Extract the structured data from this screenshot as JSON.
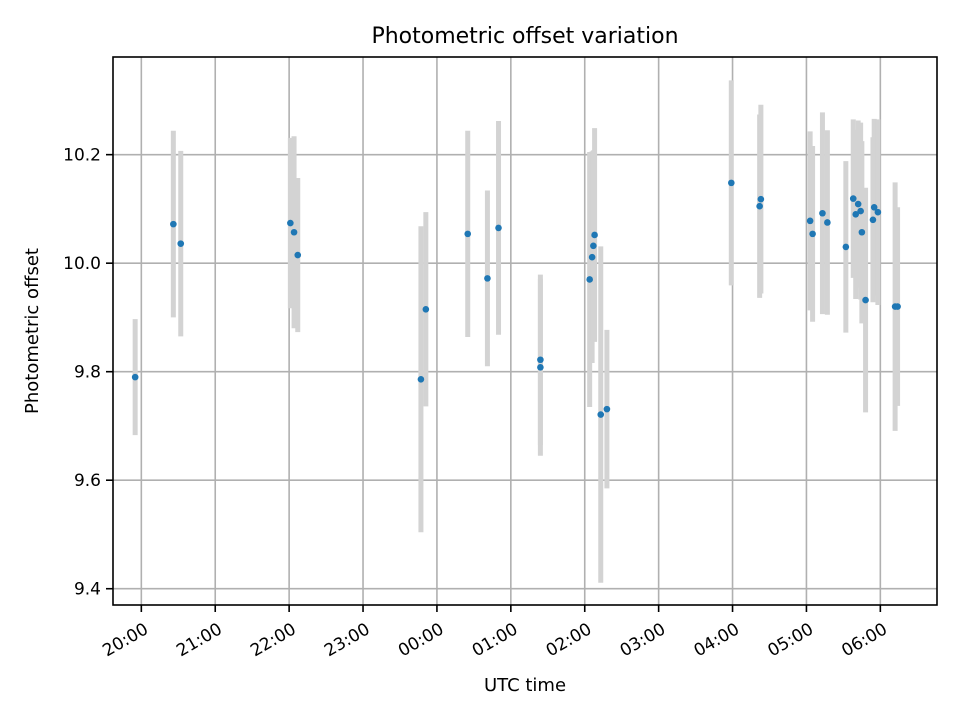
{
  "chart_data": {
    "type": "scatter",
    "title": "Photometric offset variation",
    "xlabel": "UTC time",
    "ylabel": "Photometric offset",
    "x_date": "2024-01-01",
    "xlim": [
      "2024-01-01T19:37",
      "2024-01-02T06:46"
    ],
    "ylim": [
      9.37,
      10.38
    ],
    "grid": true,
    "x_ticks": [
      {
        "t": "2024-01-01T20:00",
        "label": "20:00"
      },
      {
        "t": "2024-01-01T21:00",
        "label": "21:00"
      },
      {
        "t": "2024-01-01T22:00",
        "label": "22:00"
      },
      {
        "t": "2024-01-01T23:00",
        "label": "23:00"
      },
      {
        "t": "2024-01-02T00:00",
        "label": "00:00"
      },
      {
        "t": "2024-01-02T01:00",
        "label": "01:00"
      },
      {
        "t": "2024-01-02T02:00",
        "label": "02:00"
      },
      {
        "t": "2024-01-02T03:00",
        "label": "03:00"
      },
      {
        "t": "2024-01-02T04:00",
        "label": "04:00"
      },
      {
        "t": "2024-01-02T05:00",
        "label": "05:00"
      },
      {
        "t": "2024-01-02T06:00",
        "label": "06:00"
      }
    ],
    "y_ticks": [
      {
        "v": 9.4,
        "label": "9.4"
      },
      {
        "v": 9.6,
        "label": "9.6"
      },
      {
        "v": 9.8,
        "label": "9.8"
      },
      {
        "v": 10.0,
        "label": "10.0"
      },
      {
        "v": 10.2,
        "label": "10.2"
      }
    ],
    "point_color": "#1f77b4",
    "errorbar_color": "#d3d3d3",
    "series": [
      {
        "points": [
          {
            "t": "2024-01-01T19:55",
            "y": 9.79,
            "err": 0.107
          },
          {
            "t": "2024-01-01T20:26",
            "y": 10.072,
            "err": 0.172
          },
          {
            "t": "2024-01-01T20:32",
            "y": 10.036,
            "err": 0.171
          },
          {
            "t": "2024-01-01T22:01",
            "y": 10.074,
            "err": 0.157
          },
          {
            "t": "2024-01-01T22:04",
            "y": 10.057,
            "err": 0.177
          },
          {
            "t": "2024-01-01T22:07",
            "y": 10.015,
            "err": 0.142
          },
          {
            "t": "2024-01-01T23:47",
            "y": 9.786,
            "err": 0.282
          },
          {
            "t": "2024-01-01T23:51",
            "y": 9.915,
            "err": 0.179
          },
          {
            "t": "2024-01-02T00:25",
            "y": 10.054,
            "err": 0.19
          },
          {
            "t": "2024-01-02T00:41",
            "y": 9.972,
            "err": 0.162
          },
          {
            "t": "2024-01-02T00:50",
            "y": 10.065,
            "err": 0.197
          },
          {
            "t": "2024-01-02T01:24",
            "y": 9.822,
            "err": 0.157
          },
          {
            "t": "2024-01-02T01:24",
            "y": 9.808,
            "err": 0.163
          },
          {
            "t": "2024-01-02T02:04",
            "y": 9.97,
            "err": 0.235
          },
          {
            "t": "2024-01-02T02:06",
            "y": 10.011,
            "err": 0.195
          },
          {
            "t": "2024-01-02T02:07",
            "y": 10.032,
            "err": 0.176
          },
          {
            "t": "2024-01-02T02:08",
            "y": 10.052,
            "err": 0.197
          },
          {
            "t": "2024-01-02T02:13",
            "y": 9.721,
            "err": 0.31
          },
          {
            "t": "2024-01-02T02:18",
            "y": 9.731,
            "err": 0.146
          },
          {
            "t": "2024-01-02T03:59",
            "y": 10.148,
            "err": 0.189
          },
          {
            "t": "2024-01-02T04:22",
            "y": 10.105,
            "err": 0.169
          },
          {
            "t": "2024-01-02T04:23",
            "y": 10.118,
            "err": 0.174
          },
          {
            "t": "2024-01-02T05:03",
            "y": 10.078,
            "err": 0.165
          },
          {
            "t": "2024-01-02T05:05",
            "y": 10.054,
            "err": 0.162
          },
          {
            "t": "2024-01-02T05:13",
            "y": 10.092,
            "err": 0.186
          },
          {
            "t": "2024-01-02T05:17",
            "y": 10.075,
            "err": 0.17
          },
          {
            "t": "2024-01-02T05:32",
            "y": 10.03,
            "err": 0.158
          },
          {
            "t": "2024-01-02T05:38",
            "y": 10.119,
            "err": 0.146
          },
          {
            "t": "2024-01-02T05:40",
            "y": 10.09,
            "err": 0.156
          },
          {
            "t": "2024-01-02T05:42",
            "y": 10.109,
            "err": 0.154
          },
          {
            "t": "2024-01-02T05:44",
            "y": 10.096,
            "err": 0.163
          },
          {
            "t": "2024-01-02T05:45",
            "y": 10.057,
            "err": 0.168
          },
          {
            "t": "2024-01-02T05:48",
            "y": 9.932,
            "err": 0.207
          },
          {
            "t": "2024-01-02T05:54",
            "y": 10.08,
            "err": 0.152
          },
          {
            "t": "2024-01-02T05:55",
            "y": 10.103,
            "err": 0.163
          },
          {
            "t": "2024-01-02T05:58",
            "y": 10.094,
            "err": 0.171
          },
          {
            "t": "2024-01-02T06:12",
            "y": 9.92,
            "err": 0.229
          },
          {
            "t": "2024-01-02T06:14",
            "y": 9.92,
            "err": 0.183
          }
        ]
      }
    ]
  }
}
